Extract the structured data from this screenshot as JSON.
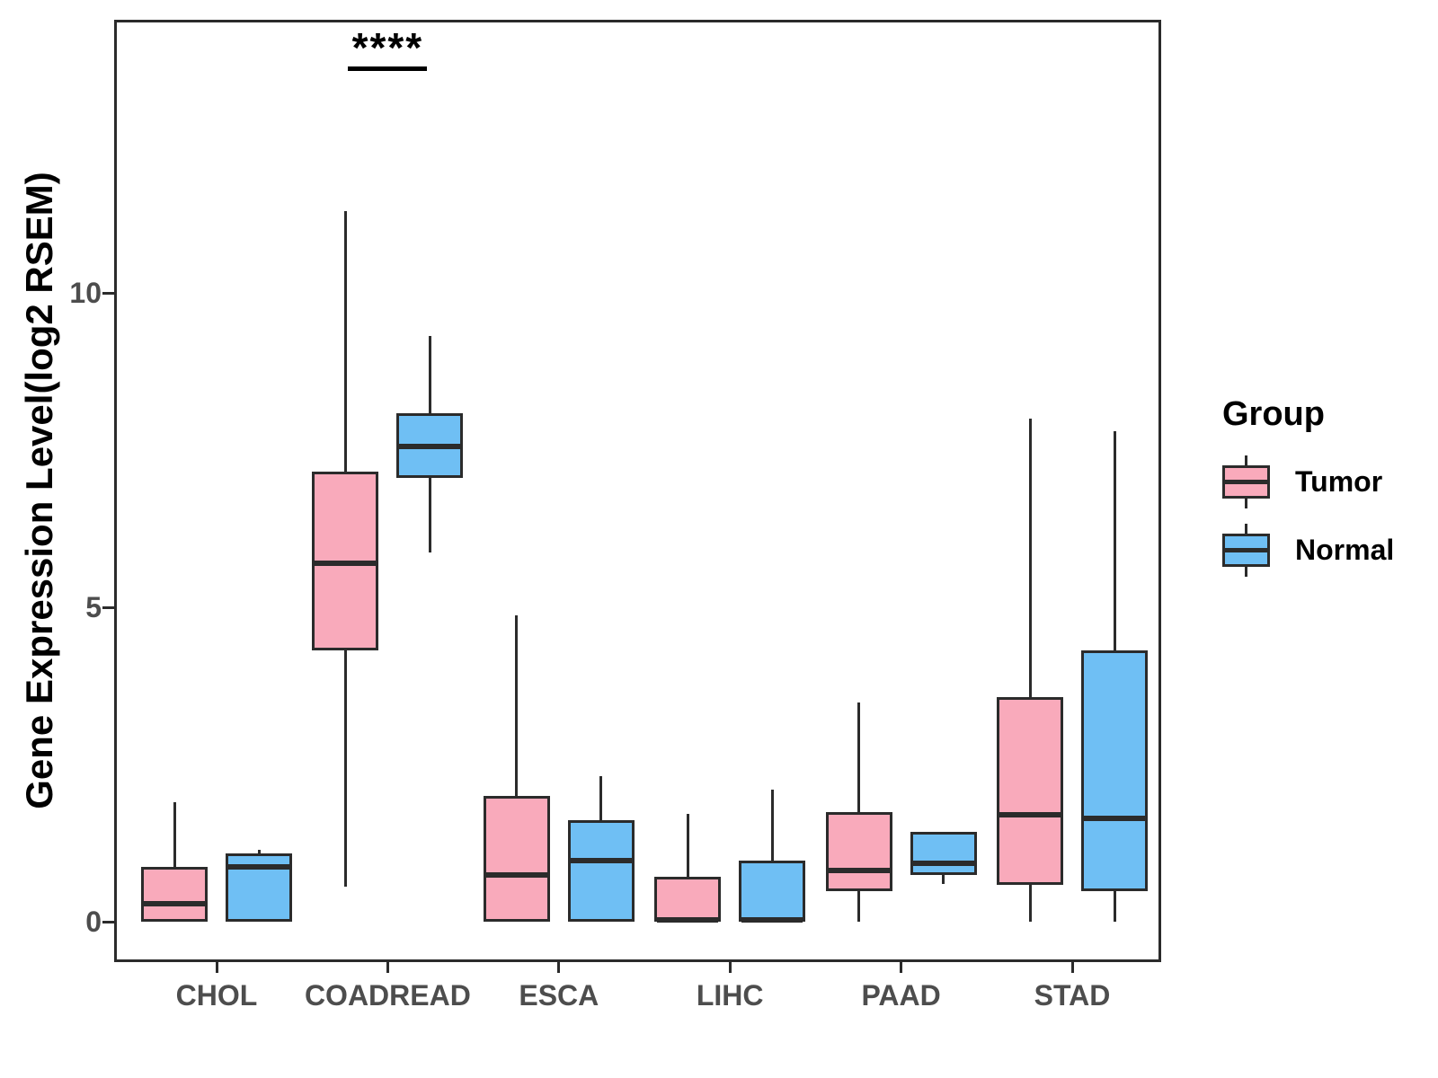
{
  "figure": {
    "y_axis": {
      "title": "Gene Expression Level(log2 RSEM)",
      "tick_labels": [
        "0",
        "5",
        "10"
      ]
    },
    "x_axis": {
      "tick_labels": [
        "CHOL",
        "COADREAD",
        "ESCA",
        "LIHC",
        "PAAD",
        "STAD"
      ]
    },
    "legend": {
      "title": "Group",
      "entries": [
        {
          "label": "Tumor",
          "color": "#F9AABB"
        },
        {
          "label": "Normal",
          "color": "#6FBFF4"
        }
      ]
    },
    "annotation": {
      "text": "****"
    }
  },
  "chart_data": {
    "type": "boxplot",
    "title": "",
    "xlabel": "",
    "ylabel": "Gene Expression Level(log2 RSEM)",
    "categories": [
      "CHOL",
      "COADREAD",
      "ESCA",
      "LIHC",
      "PAAD",
      "STAD"
    ],
    "groups": [
      "Tumor",
      "Normal"
    ],
    "colors": {
      "Tumor": "#F9AABB",
      "Normal": "#6FBFF4",
      "stroke": "#2b2b2b"
    },
    "ylim": [
      -0.6,
      14.3
    ],
    "yticks": [
      0,
      5,
      10
    ],
    "grid": false,
    "legend_position": "right",
    "series": [
      {
        "name": "Tumor",
        "color": "#F9AABB",
        "boxes": [
          {
            "category": "CHOL",
            "min": 0,
            "q1": 0,
            "median": 0.28,
            "q3": 0.87,
            "max": 1.9
          },
          {
            "category": "COADREAD",
            "min": 0.55,
            "q1": 4.32,
            "median": 5.7,
            "q3": 7.16,
            "max": 11.3
          },
          {
            "category": "ESCA",
            "min": 0,
            "q1": 0,
            "median": 0.74,
            "q3": 2.0,
            "max": 4.87
          },
          {
            "category": "LIHC",
            "min": 0,
            "q1": 0,
            "median": 0.03,
            "q3": 0.71,
            "max": 1.72
          },
          {
            "category": "PAAD",
            "min": 0,
            "q1": 0.49,
            "median": 0.82,
            "q3": 1.74,
            "max": 3.49
          },
          {
            "category": "STAD",
            "min": 0,
            "q1": 0.59,
            "median": 1.7,
            "q3": 3.57,
            "max": 8.0
          }
        ]
      },
      {
        "name": "Normal",
        "color": "#6FBFF4",
        "boxes": [
          {
            "category": "CHOL",
            "min": 0,
            "q1": 0,
            "median": 0.87,
            "q3": 1.09,
            "max": 1.15
          },
          {
            "category": "COADREAD",
            "min": 5.87,
            "q1": 7.06,
            "median": 7.56,
            "q3": 8.09,
            "max": 9.32
          },
          {
            "category": "ESCA",
            "min": 0,
            "q1": 0,
            "median": 0.97,
            "q3": 1.61,
            "max": 2.32
          },
          {
            "category": "LIHC",
            "min": 0,
            "q1": 0,
            "median": 0.03,
            "q3": 0.97,
            "max": 2.1
          },
          {
            "category": "PAAD",
            "min": 0.6,
            "q1": 0.74,
            "median": 0.93,
            "q3": 1.43,
            "max": 1.43
          },
          {
            "category": "STAD",
            "min": 0,
            "q1": 0.48,
            "median": 1.65,
            "q3": 4.31,
            "max": 7.8
          }
        ]
      }
    ],
    "significance": {
      "text": "****",
      "category": "COADREAD",
      "y": 13.6
    }
  }
}
